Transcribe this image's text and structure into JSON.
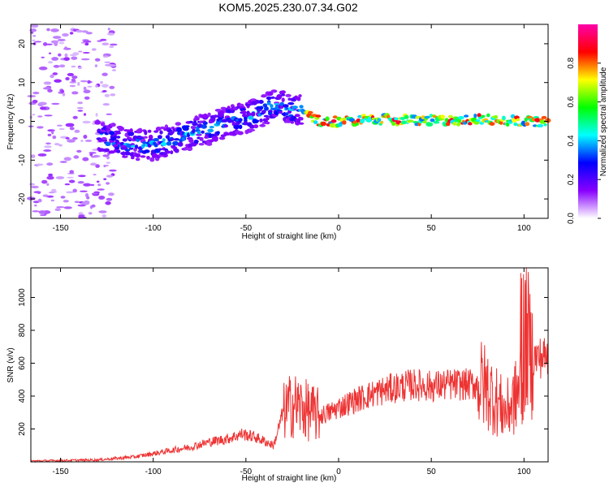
{
  "title": "KOM5.2025.230.07.34.G02",
  "chart_data": [
    {
      "type": "heatmap",
      "title": "KOM5.2025.230.07.34.G02",
      "xlabel": "Height of straight line (km)",
      "ylabel": "Frequency (Hz)",
      "xlim": [
        -166,
        113
      ],
      "ylim": [
        -25,
        25
      ],
      "xticks": [
        -150,
        -100,
        -50,
        0,
        50,
        100
      ],
      "yticks": [
        -20,
        -10,
        0,
        10,
        20
      ],
      "ridge": {
        "x": [
          -130,
          -120,
          -110,
          -100,
          -90,
          -80,
          -70,
          -60,
          -50,
          -40,
          -35,
          -30,
          -25,
          -20,
          -10,
          0,
          20,
          40,
          60,
          80,
          100,
          113
        ],
        "y": [
          -4,
          -5,
          -6,
          -6,
          -5,
          -3,
          -2,
          0,
          1,
          3,
          4,
          4,
          3,
          3,
          0,
          0,
          0.5,
          0.3,
          0.2,
          0.5,
          0,
          0
        ]
      }
    },
    {
      "type": "colorbar",
      "label": "Normalized spectral amplitude",
      "ticks": [
        "0.0",
        "0.2",
        "0.4",
        "0.6",
        "0.8"
      ],
      "tick_values": [
        0,
        0.2,
        0.4,
        0.6,
        0.8
      ],
      "range": [
        0,
        1
      ],
      "colors": [
        "#ffffff",
        "#8800ff",
        "#0000ff",
        "#00ffff",
        "#00ff00",
        "#ffff00",
        "#ff0000",
        "#ff00aa"
      ]
    },
    {
      "type": "line",
      "xlabel": "Height of straight line (km)",
      "ylabel": "SNR (v/v)",
      "xlim": [
        -166,
        113
      ],
      "ylim": [
        0,
        1180
      ],
      "xticks": [
        -150,
        -100,
        -50,
        0,
        50,
        100
      ],
      "yticks": [
        200,
        400,
        600,
        800,
        1000
      ],
      "color": "#ee3333",
      "series": [
        {
          "name": "SNR",
          "x": [
            -166,
            -150,
            -130,
            -110,
            -100,
            -90,
            -80,
            -70,
            -60,
            -52,
            -45,
            -35,
            -30,
            -25,
            -20,
            -15,
            -10,
            -5,
            0,
            10,
            20,
            30,
            40,
            50,
            60,
            70,
            78,
            82,
            90,
            95,
            99,
            101,
            104,
            113
          ],
          "y": [
            5,
            8,
            12,
            30,
            50,
            70,
            90,
            120,
            140,
            170,
            150,
            100,
            300,
            350,
            330,
            300,
            280,
            300,
            330,
            380,
            420,
            450,
            470,
            460,
            470,
            470,
            470,
            420,
            300,
            380,
            500,
            800,
            630,
            640
          ]
        }
      ]
    }
  ]
}
